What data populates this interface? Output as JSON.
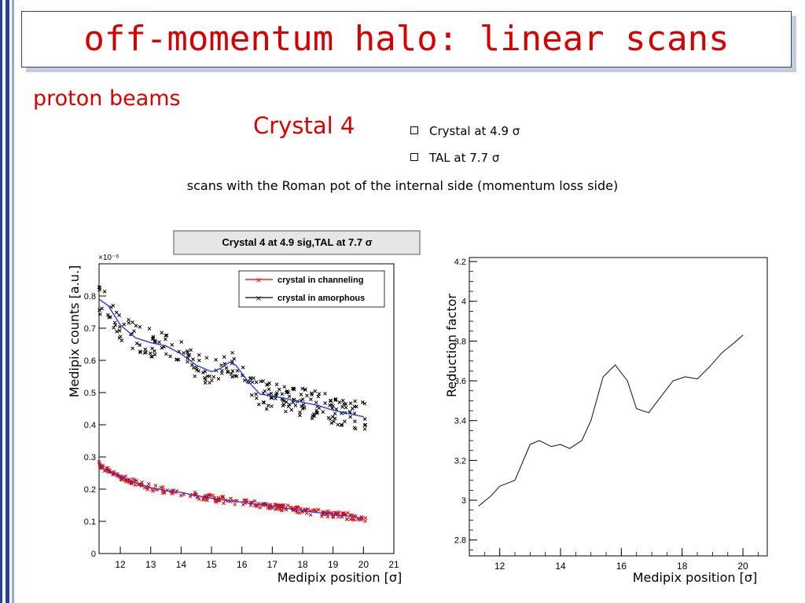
{
  "slide": {
    "title": "off-momentum halo: linear scans",
    "subtitle": "proton beams",
    "crystal_label": "Crystal 4",
    "bullets": [
      "Crystal at 4.9 σ",
      "TAL at 7.7 σ"
    ],
    "note": "scans with the Roman pot of the internal side (momentum loss side)"
  },
  "colors": {
    "accent": "#d40000",
    "frame": "#2a3f9a",
    "channeling": "#e00000",
    "amorphous": "#000000",
    "fit": "#2b3fd6"
  },
  "chart_data": [
    {
      "type": "scatter",
      "title": "Crystal 4 at 4.9 sig,TAL at 7.7 σ",
      "xlabel": "Medipix position [σ]",
      "ylabel": "Medipix counts [a.u.]",
      "y_exponent_label": "×10⁻⁶",
      "xlim": [
        11.3,
        21
      ],
      "ylim": [
        0,
        0.9
      ],
      "xticks": [
        "12",
        "13",
        "14",
        "15",
        "16",
        "17",
        "18",
        "19",
        "20",
        "21"
      ],
      "yticks": [
        "0",
        "0.1",
        "0.2",
        "0.3",
        "0.4",
        "0.5",
        "0.6",
        "0.7",
        "0.8"
      ],
      "legend_position": "top-right",
      "series": [
        {
          "name": "crystal in channeling",
          "x": [
            11.3,
            11.5,
            12.0,
            12.5,
            13.0,
            13.5,
            14.0,
            14.5,
            15.0,
            15.5,
            16.0,
            16.5,
            17.0,
            17.5,
            18.0,
            18.5,
            19.0,
            19.5,
            20.0
          ],
          "y": [
            0.28,
            0.26,
            0.24,
            0.22,
            0.205,
            0.195,
            0.19,
            0.18,
            0.172,
            0.165,
            0.16,
            0.153,
            0.147,
            0.14,
            0.133,
            0.127,
            0.122,
            0.116,
            0.11
          ]
        },
        {
          "name": "crystal in amorphous",
          "x": [
            11.3,
            11.6,
            12.0,
            12.5,
            13.0,
            13.5,
            14.0,
            14.5,
            15.0,
            15.3,
            15.6,
            15.8,
            16.2,
            16.6,
            17.0,
            17.5,
            18.0,
            18.5,
            19.0,
            19.5,
            20.0
          ],
          "y": [
            0.79,
            0.77,
            0.71,
            0.67,
            0.655,
            0.645,
            0.62,
            0.585,
            0.565,
            0.575,
            0.595,
            0.585,
            0.535,
            0.495,
            0.49,
            0.48,
            0.47,
            0.46,
            0.445,
            0.435,
            0.425
          ]
        }
      ]
    },
    {
      "type": "line",
      "xlabel": "Medipix position [σ]",
      "ylabel": "Reduction factor",
      "xlim": [
        11,
        20.8
      ],
      "ylim": [
        2.72,
        4.22
      ],
      "xticks": [
        "12",
        "14",
        "16",
        "18",
        "20"
      ],
      "yticks": [
        "2.8",
        "3",
        "3.2",
        "3.4",
        "3.6",
        "3.8",
        "4",
        "4.2"
      ],
      "series": [
        {
          "x": [
            11.3,
            11.7,
            12.0,
            12.5,
            13.0,
            13.3,
            13.7,
            14.0,
            14.3,
            14.7,
            15.0,
            15.4,
            15.8,
            16.2,
            16.5,
            16.9,
            17.3,
            17.7,
            18.1,
            18.5,
            18.9,
            19.3,
            19.7,
            20.0
          ],
          "y": [
            2.97,
            3.02,
            3.07,
            3.1,
            3.28,
            3.3,
            3.27,
            3.28,
            3.26,
            3.3,
            3.4,
            3.62,
            3.68,
            3.6,
            3.46,
            3.44,
            3.52,
            3.6,
            3.62,
            3.61,
            3.67,
            3.74,
            3.79,
            3.83
          ]
        }
      ]
    }
  ]
}
